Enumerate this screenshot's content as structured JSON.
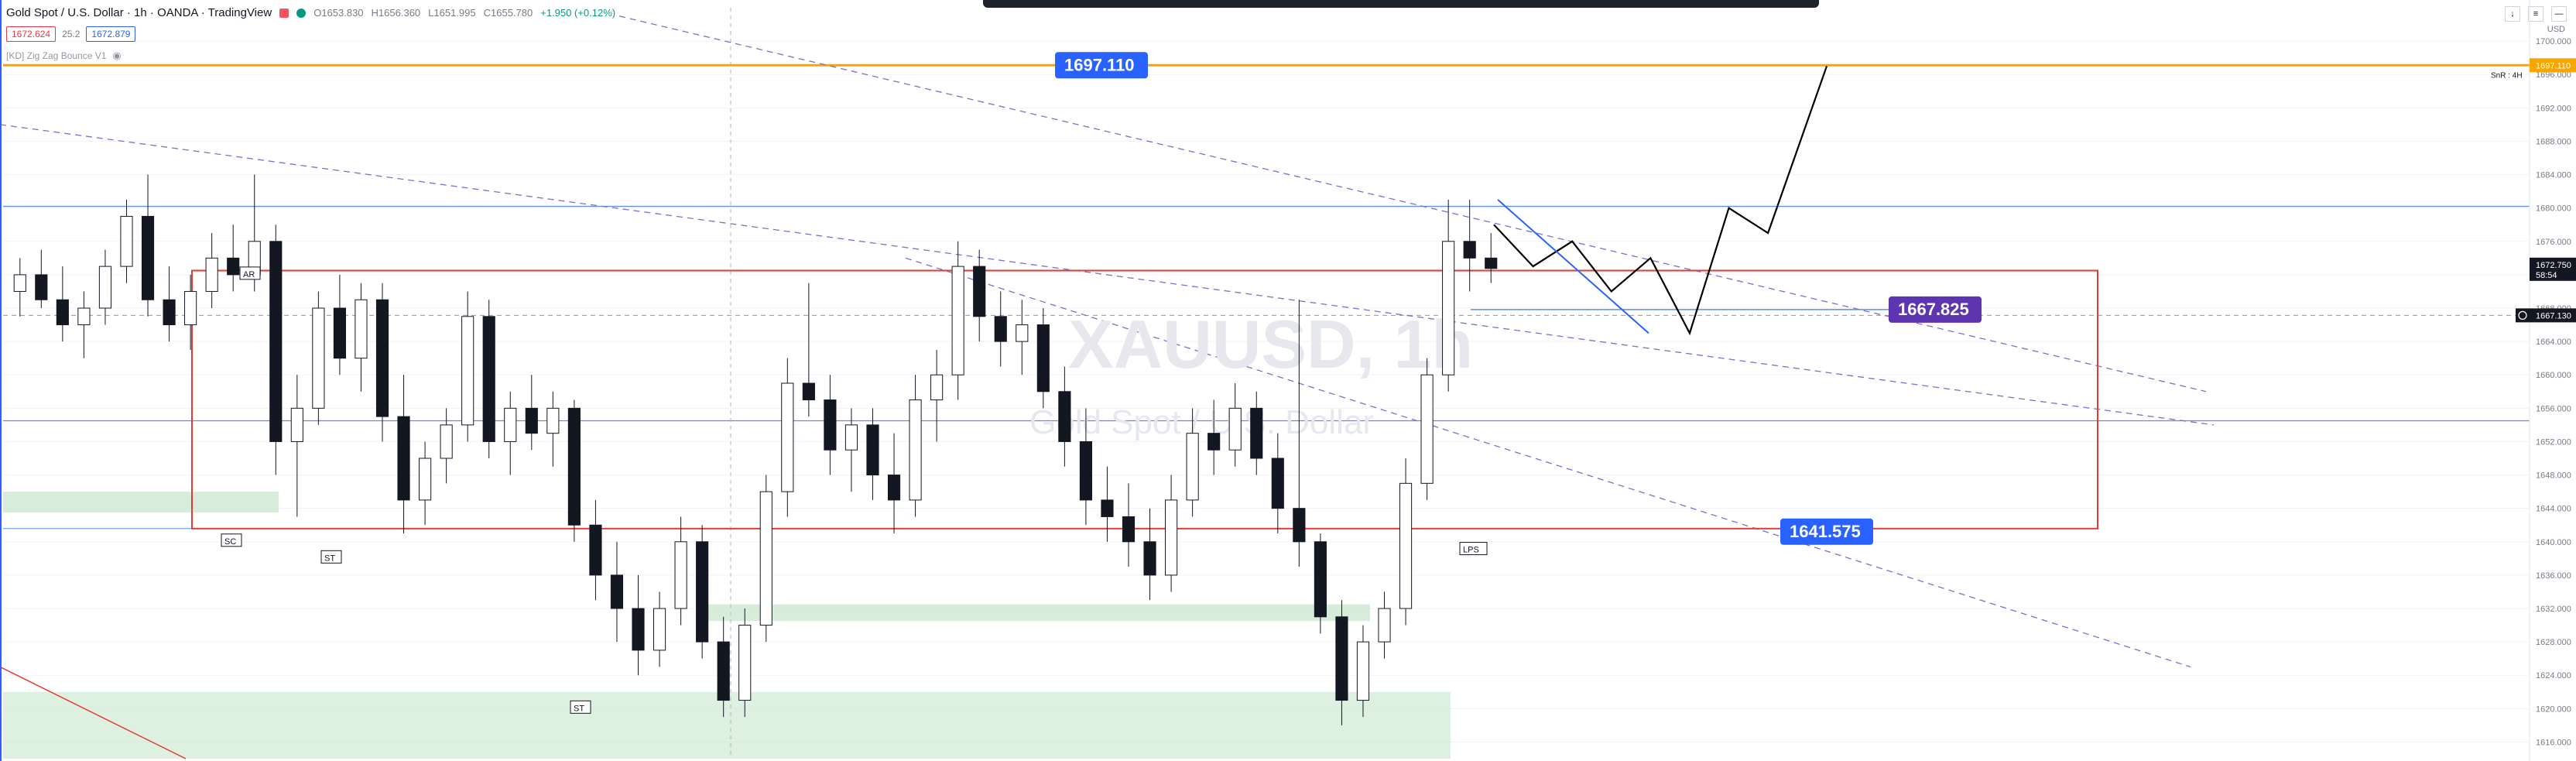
{
  "header": {
    "title": "Gold Spot / U.S. Dollar · 1h · OANDA · TradingView",
    "open": "O1653.830",
    "high": "H1656.360",
    "low": "L1651.995",
    "close": "C1655.780",
    "change": "+1.950 (+0.12%)",
    "sell_price": "1672.624",
    "spread": "25.2",
    "buy_price": "1672.879",
    "indicator": "[KD] Zig Zag Bounce V1",
    "eye_icon": "eye-icon",
    "currency": "USD",
    "status_dot_color": "#089981",
    "flag_color": "#f7525f"
  },
  "colors": {
    "resistance": "#f7a600",
    "range_box": "#e53935",
    "level_line": "#5b8def",
    "trend_dashed": "#7b6fd0",
    "zone": "#c8e6c9",
    "candle": "#131722",
    "projection": "#000000",
    "blue_label": "#2962ff",
    "purple_label": "#5e35b1",
    "grid": "#f0f3fa",
    "red_trend": "#e53935"
  },
  "chart_data": {
    "type": "candlestick",
    "symbol": "XAUUSD",
    "interval": "1h",
    "watermark_symbol": "XAUUSD, 1h",
    "watermark_name": "Gold Spot / U.S. Dollar",
    "ylim": [
      1614,
      1704
    ],
    "y_ticks": [
      1616,
      1620,
      1624,
      1628,
      1632,
      1636,
      1640,
      1644,
      1648,
      1652,
      1656,
      1660,
      1664,
      1668,
      1672,
      1676,
      1680,
      1684,
      1688,
      1692,
      1696,
      1700
    ],
    "y_tick_labels": [
      "1616.000",
      "1620.000",
      "1624.000",
      "1628.000",
      "1632.000",
      "1636.000",
      "1640.000",
      "1644.000",
      "1648.000",
      "1652.000",
      "1656.000",
      "1660.000",
      "1664.000",
      "1668.000",
      "1672.000",
      "1676.000",
      "1680.000",
      "1684.000",
      "1688.000",
      "1692.000",
      "1696.000",
      "1700.000"
    ],
    "levels": {
      "resistance": 1697.11,
      "resistance_label": "1697.110",
      "resistance_axis_label": "1697.110",
      "resistance_note": "SnR : 4H",
      "upper_mid": 1667.825,
      "upper_mid_label": "1667.825",
      "range_bottom": 1641.575,
      "range_bottom_label": "1641.575",
      "last_price": "1672.750",
      "countdown": "58:54",
      "dashed_price": "1667.130",
      "range_top": 1672.5,
      "h_line_a": 1680.2,
      "h_line_b": 1654.5
    },
    "annotations": [
      "AR",
      "SC",
      "ST",
      "ST",
      "LPS"
    ],
    "candles": [
      [
        1670,
        1674,
        1667,
        1672
      ],
      [
        1672,
        1675,
        1668,
        1669
      ],
      [
        1669,
        1673,
        1664,
        1666
      ],
      [
        1666,
        1670,
        1662,
        1668
      ],
      [
        1668,
        1675,
        1666,
        1673
      ],
      [
        1673,
        1681,
        1671,
        1679
      ],
      [
        1679,
        1684,
        1667,
        1669
      ],
      [
        1669,
        1673,
        1664,
        1666
      ],
      [
        1666,
        1672,
        1663,
        1670
      ],
      [
        1670,
        1677,
        1668,
        1674
      ],
      [
        1674,
        1678,
        1670,
        1672
      ],
      [
        1672,
        1684,
        1670,
        1676
      ],
      [
        1676,
        1678,
        1648,
        1652
      ],
      [
        1652,
        1660,
        1643,
        1656
      ],
      [
        1656,
        1670,
        1654,
        1668
      ],
      [
        1668,
        1672,
        1660,
        1662
      ],
      [
        1662,
        1671,
        1658,
        1669
      ],
      [
        1669,
        1671,
        1652,
        1655
      ],
      [
        1655,
        1660,
        1641,
        1645
      ],
      [
        1645,
        1652,
        1642,
        1650
      ],
      [
        1650,
        1656,
        1647,
        1654
      ],
      [
        1654,
        1670,
        1652,
        1667
      ],
      [
        1667,
        1669,
        1650,
        1652
      ],
      [
        1652,
        1658,
        1648,
        1656
      ],
      [
        1656,
        1660,
        1651,
        1653
      ],
      [
        1653,
        1658,
        1649,
        1656
      ],
      [
        1656,
        1657,
        1640,
        1642
      ],
      [
        1642,
        1645,
        1633,
        1636
      ],
      [
        1636,
        1640,
        1628,
        1632
      ],
      [
        1632,
        1636,
        1624,
        1627
      ],
      [
        1627,
        1634,
        1625,
        1632
      ],
      [
        1632,
        1643,
        1630,
        1640
      ],
      [
        1640,
        1642,
        1626,
        1628
      ],
      [
        1628,
        1631,
        1619,
        1621
      ],
      [
        1621,
        1632,
        1619,
        1630
      ],
      [
        1630,
        1648,
        1628,
        1646
      ],
      [
        1646,
        1662,
        1643,
        1659
      ],
      [
        1659,
        1671,
        1655,
        1657
      ],
      [
        1657,
        1660,
        1648,
        1651
      ],
      [
        1651,
        1656,
        1646,
        1654
      ],
      [
        1654,
        1656,
        1645,
        1648
      ],
      [
        1648,
        1653,
        1641,
        1645
      ],
      [
        1645,
        1660,
        1643,
        1657
      ],
      [
        1657,
        1663,
        1652,
        1660
      ],
      [
        1660,
        1676,
        1657,
        1673
      ],
      [
        1673,
        1675,
        1664,
        1667
      ],
      [
        1667,
        1670,
        1661,
        1664
      ],
      [
        1664,
        1669,
        1660,
        1666
      ],
      [
        1666,
        1668,
        1656,
        1658
      ],
      [
        1658,
        1661,
        1649,
        1652
      ],
      [
        1652,
        1656,
        1642,
        1645
      ],
      [
        1645,
        1649,
        1640,
        1643
      ],
      [
        1643,
        1647,
        1637,
        1640
      ],
      [
        1640,
        1644,
        1633,
        1636
      ],
      [
        1636,
        1648,
        1634,
        1645
      ],
      [
        1645,
        1656,
        1643,
        1653
      ],
      [
        1653,
        1657,
        1648,
        1651
      ],
      [
        1651,
        1659,
        1649,
        1656
      ],
      [
        1656,
        1658,
        1648,
        1650
      ],
      [
        1650,
        1653,
        1641,
        1644
      ],
      [
        1644,
        1669,
        1637,
        1640
      ],
      [
        1640,
        1641,
        1629,
        1631
      ],
      [
        1631,
        1633,
        1618,
        1621
      ],
      [
        1621,
        1630,
        1619,
        1628
      ],
      [
        1628,
        1634,
        1626,
        1632
      ],
      [
        1632,
        1650,
        1630,
        1647
      ],
      [
        1647,
        1662,
        1645,
        1660
      ],
      [
        1660,
        1681,
        1658,
        1676
      ],
      [
        1676,
        1681,
        1670,
        1674
      ],
      [
        1674,
        1677,
        1671,
        1672.75
      ]
    ],
    "projection": [
      [
        1676,
        1678
      ],
      [
        1678,
        1673
      ],
      [
        1680,
        1676
      ],
      [
        1682,
        1670
      ],
      [
        1684,
        1674
      ],
      [
        1686,
        1665
      ],
      [
        1688,
        1680
      ],
      [
        1690,
        1677
      ],
      [
        1693,
        1697
      ]
    ]
  }
}
